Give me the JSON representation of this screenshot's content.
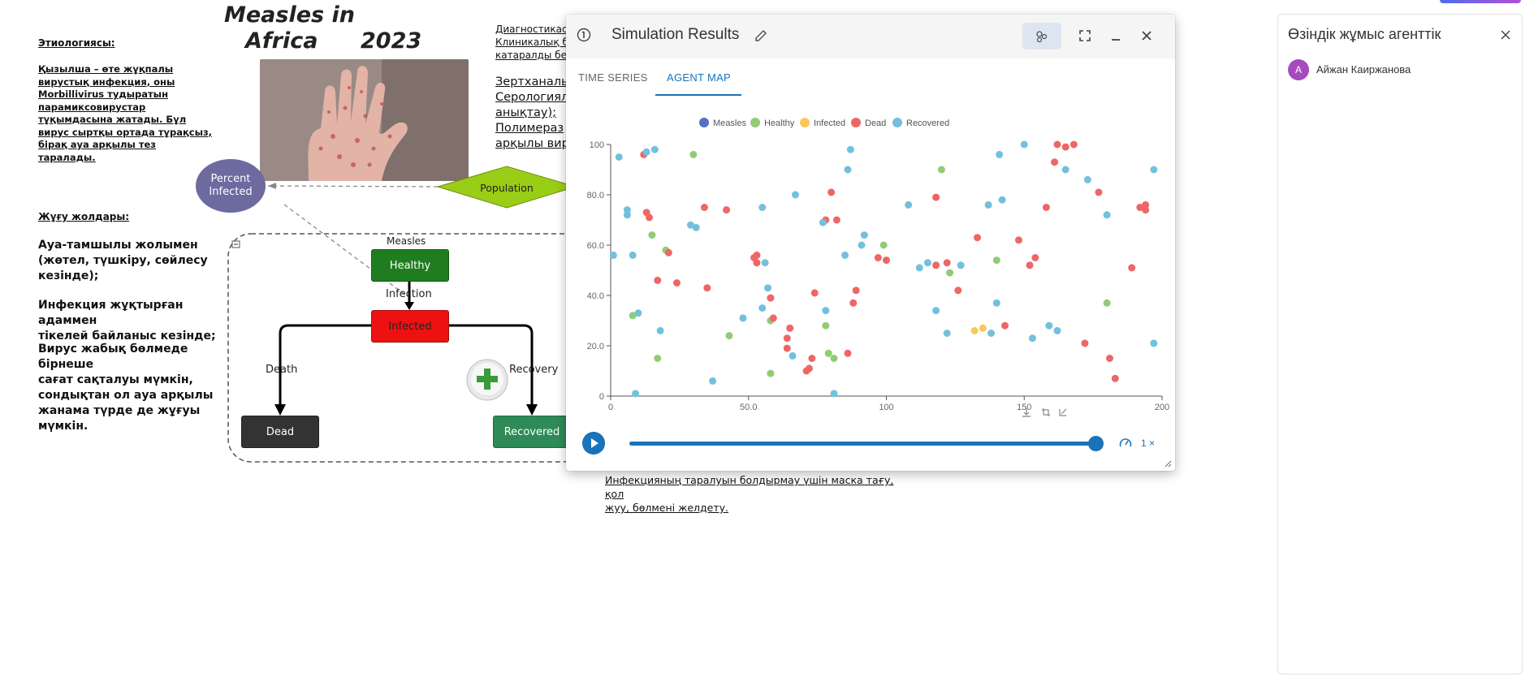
{
  "canvas": {
    "etiology_title": "Этиологиясы:",
    "etiology_lines": [
      "Қызылша – өте жұқпалы",
      "вирустық инфекция, оны",
      "Morbillivirus тудыратын",
      "парамиксовирустар",
      "тұқымдасына жатады. Бұл",
      "вирус сыртқы ортада тұрақсыз,",
      "бірақ ауа арқылы тез",
      "таралады."
    ],
    "transmission_title": "Жұғу жолдары:",
    "transmission_items": [
      [
        "Ауа-тамшылы жолымен",
        "(жөтел, түшкіру, сөйлесу",
        "кезінде);"
      ],
      [
        "Инфекция жұқтырған адаммен",
        "тікелей байланыс кезінде;"
      ],
      [
        "Вирус жабық бөлмеде бірнеше",
        "сағат сақталуы мүмкін,",
        "сондықтан ол ауа арқылы",
        "жанама түрде де жұғуы",
        "мүмкін."
      ]
    ],
    "title_line1": "Measles in",
    "title_line2": "Africa",
    "title_year": "2023",
    "diag_lines": [
      "Диагностикас",
      "Клиникалық б",
      "катаралды бе"
    ],
    "diag_lines2": [
      "Зертханалық д",
      "Серологиял",
      "анықтау);",
      "Полимераз",
      "арқылы вир"
    ],
    "prevention_lines": [
      "Инфекцияның таралуын болдырмау үшін маска тағу, қол",
      "жуу, бөлмені желдету."
    ],
    "nodes": {
      "percent_infected": "Percent Infected",
      "population": "Population",
      "healthy": "Healthy",
      "infected": "Infected",
      "dead": "Dead",
      "recovered": "Recovered"
    },
    "flows": {
      "group": "Measles",
      "infection": "Infection",
      "death": "Death",
      "recovery": "Recovery"
    },
    "colors": {
      "percent_node": "#6d6aa0",
      "population_node": "#9acd16",
      "healthy_node": "#1f7d1f",
      "infected_node": "#ee1111",
      "dead_node": "#333333",
      "recovered_node": "#2e8b57"
    }
  },
  "simulation": {
    "title": "Simulation Results",
    "tabs": [
      "TIME SERIES",
      "AGENT MAP"
    ],
    "active_tab": "AGENT MAP",
    "speed": "1 ×",
    "progress": 1.0,
    "icons": [
      "info-icon",
      "edit-icon",
      "agent-network-icon",
      "expand-icon",
      "minimize-icon",
      "close-icon",
      "play-icon",
      "speed-icon",
      "download-icon",
      "crop-icon",
      "reset-zoom-icon"
    ],
    "accent_color": "#1a73b8"
  },
  "chart_data": {
    "type": "scatter",
    "title": "",
    "xlabel": "",
    "ylabel": "",
    "xlim": [
      0,
      200
    ],
    "ylim": [
      0,
      100
    ],
    "x_ticks": [
      "0",
      "50.0",
      "100",
      "150",
      "200"
    ],
    "y_ticks": [
      "0",
      "20.0",
      "40.0",
      "60.0",
      "80.0",
      "100"
    ],
    "legend_position": "top",
    "series": [
      {
        "name": "Measles",
        "color": "#5470c6",
        "points": []
      },
      {
        "name": "Healthy",
        "color": "#91cc75",
        "points": [
          [
            15,
            64
          ],
          [
            8,
            32
          ],
          [
            17,
            15
          ],
          [
            20,
            58
          ],
          [
            30,
            96
          ],
          [
            43,
            24
          ],
          [
            58,
            30
          ],
          [
            58,
            9
          ],
          [
            78,
            28
          ],
          [
            79,
            17
          ],
          [
            81,
            15
          ],
          [
            99,
            60
          ],
          [
            123,
            49
          ],
          [
            120,
            90
          ],
          [
            140,
            54
          ],
          [
            180,
            37
          ]
        ]
      },
      {
        "name": "Infected",
        "color": "#fac858",
        "points": [
          [
            135,
            27
          ],
          [
            132,
            26
          ]
        ]
      },
      {
        "name": "Dead",
        "color": "#ee6666",
        "points": [
          [
            12,
            96
          ],
          [
            13,
            73
          ],
          [
            14,
            71
          ],
          [
            17,
            46
          ],
          [
            21,
            57
          ],
          [
            24,
            45
          ],
          [
            35,
            43
          ],
          [
            34,
            75
          ],
          [
            42,
            74
          ],
          [
            52,
            55
          ],
          [
            53,
            53
          ],
          [
            53,
            56
          ],
          [
            58,
            39
          ],
          [
            59,
            31
          ],
          [
            64,
            23
          ],
          [
            64,
            19
          ],
          [
            65,
            27
          ],
          [
            71,
            10
          ],
          [
            72,
            11
          ],
          [
            73,
            15
          ],
          [
            74,
            41
          ],
          [
            78,
            70
          ],
          [
            80,
            81
          ],
          [
            82,
            70
          ],
          [
            86,
            17
          ],
          [
            88,
            37
          ],
          [
            89,
            42
          ],
          [
            97,
            55
          ],
          [
            100,
            54
          ],
          [
            118,
            52
          ],
          [
            118,
            79
          ],
          [
            122,
            53
          ],
          [
            126,
            42
          ],
          [
            133,
            63
          ],
          [
            143,
            28
          ],
          [
            148,
            62
          ],
          [
            152,
            52
          ],
          [
            154,
            55
          ],
          [
            158,
            75
          ],
          [
            161,
            93
          ],
          [
            162,
            100
          ],
          [
            165,
            99
          ],
          [
            168,
            100
          ],
          [
            172,
            21
          ],
          [
            177,
            81
          ],
          [
            181,
            15
          ],
          [
            183,
            7
          ],
          [
            189,
            51
          ],
          [
            192,
            75
          ],
          [
            194,
            76
          ],
          [
            194,
            74
          ]
        ]
      },
      {
        "name": "Recovered",
        "color": "#73c0de",
        "points": [
          [
            1,
            56
          ],
          [
            3,
            95
          ],
          [
            6,
            74
          ],
          [
            6,
            72
          ],
          [
            8,
            56
          ],
          [
            9,
            1
          ],
          [
            10,
            33
          ],
          [
            13,
            97
          ],
          [
            16,
            98
          ],
          [
            18,
            26
          ],
          [
            29,
            68
          ],
          [
            31,
            67
          ],
          [
            37,
            6
          ],
          [
            48,
            31
          ],
          [
            55,
            35
          ],
          [
            55,
            75
          ],
          [
            56,
            53
          ],
          [
            57,
            43
          ],
          [
            66,
            16
          ],
          [
            67,
            80
          ],
          [
            77,
            69
          ],
          [
            78,
            34
          ],
          [
            81,
            1
          ],
          [
            85,
            56
          ],
          [
            86,
            90
          ],
          [
            87,
            98
          ],
          [
            91,
            60
          ],
          [
            92,
            64
          ],
          [
            108,
            76
          ],
          [
            112,
            51
          ],
          [
            115,
            53
          ],
          [
            118,
            34
          ],
          [
            122,
            25
          ],
          [
            127,
            52
          ],
          [
            137,
            76
          ],
          [
            138,
            25
          ],
          [
            140,
            37
          ],
          [
            141,
            96
          ],
          [
            142,
            78
          ],
          [
            150,
            100
          ],
          [
            153,
            23
          ],
          [
            159,
            28
          ],
          [
            162,
            26
          ],
          [
            165,
            90
          ],
          [
            173,
            86
          ],
          [
            180,
            72
          ],
          [
            197,
            21
          ],
          [
            197,
            90
          ]
        ]
      }
    ]
  },
  "agent_panel": {
    "title": "Өзіндік жұмыс агенттік",
    "user_initial": "А",
    "user_name": "Айжан Каиржанова",
    "avatar_color": "#a64bbf"
  }
}
